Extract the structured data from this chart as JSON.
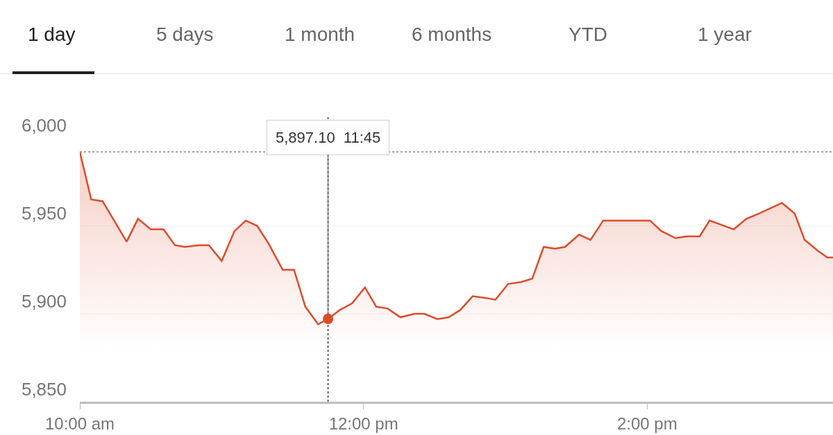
{
  "chart_data": {
    "type": "area",
    "annotations": [
      "1 day",
      "5 days",
      "1 month",
      "6 months",
      "YTD",
      "1 year",
      {
        "text": "5,897.10  11:45",
        "x": 11.75,
        "y": 5897.1
      }
    ],
    "x": [
      10.0,
      10.08,
      10.16,
      10.33,
      10.41,
      10.5,
      10.59,
      10.67,
      10.74,
      10.84,
      10.91,
      11.0,
      11.09,
      11.17,
      11.25,
      11.33,
      11.43,
      11.51,
      11.59,
      11.68,
      11.75,
      11.83,
      11.92,
      12.01,
      12.09,
      12.17,
      12.26,
      12.36,
      12.43,
      12.52,
      12.6,
      12.68,
      12.77,
      12.86,
      12.93,
      13.02,
      13.11,
      13.19,
      13.27,
      13.35,
      13.42,
      13.52,
      13.6,
      13.69,
      13.79,
      14.02,
      14.1,
      14.2,
      14.28,
      14.37,
      14.44,
      14.61,
      14.7,
      14.79,
      14.95,
      15.04,
      15.11,
      15.2,
      15.27,
      15.31
    ],
    "series": [
      {
        "color": "#dd4b2b",
        "values": [
          5992,
          5965,
          5964,
          5941,
          5954,
          5948,
          5948,
          5939,
          5938,
          5939,
          5939,
          5930,
          5947,
          5953,
          5950,
          5940,
          5925,
          5925,
          5904,
          5894,
          5897.1,
          5902,
          5906,
          5915,
          5904,
          5903,
          5898,
          5900,
          5900,
          5897,
          5898,
          5902,
          5910,
          5909,
          5908,
          5917,
          5918,
          5920,
          5938,
          5937,
          5938,
          5945,
          5942,
          5953,
          5953,
          5953,
          5947,
          5943,
          5944,
          5944,
          5953,
          5948,
          5954,
          5957,
          5963,
          5957,
          5942,
          5936,
          5932,
          5932
        ]
      },
      {
        "type": "scatter",
        "color": "#dd4b2b",
        "x": [
          11.75
        ],
        "values": [
          5897.1
        ]
      }
    ],
    "xlim": [
      10,
      15.31
    ],
    "xticks": [
      {
        "value": 10,
        "label": "10:00 am"
      },
      {
        "value": 12,
        "label": "12:00 pm"
      },
      {
        "value": 14,
        "label": "2:00 pm"
      }
    ],
    "ylim": [
      5850,
      6000
    ],
    "yticks": [
      {
        "value": 5850,
        "label": "5,850"
      },
      {
        "value": 5900,
        "label": "5,900"
      },
      {
        "value": 5950,
        "label": "5,950"
      },
      {
        "value": 6000,
        "label": "6,000"
      }
    ],
    "ref_lines": [
      {
        "axis": "y",
        "value": 5992,
        "color": "#9e9e9e",
        "line_style": "dotted"
      },
      {
        "axis": "x",
        "value": 11.75,
        "color": "#616161",
        "line_style": "dotted"
      }
    ],
    "grid": "y"
  }
}
